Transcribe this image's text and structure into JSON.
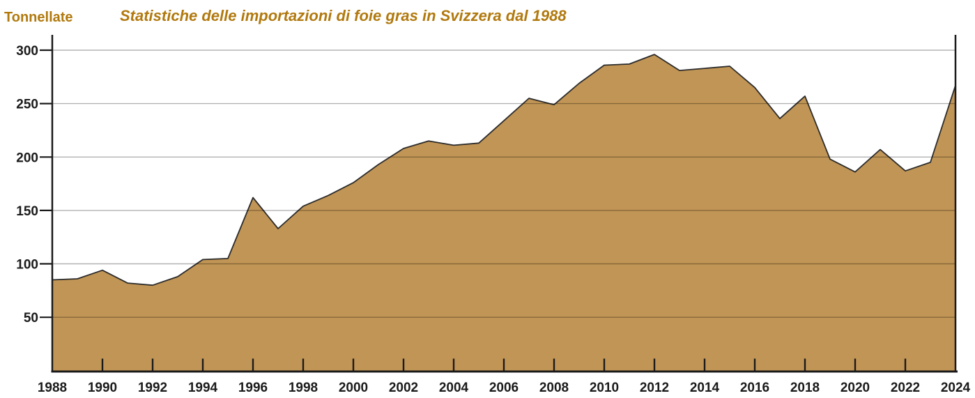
{
  "header": {
    "y_axis_unit_label": "Tonnellate",
    "title": "Statistiche delle importazioni di foie gras in Svizzera dal 1988"
  },
  "colors": {
    "accent_text": "#B1790E",
    "area_fill": "#C19555",
    "area_outline": "#2B2B2B",
    "axis": "#1A1A1A",
    "gridline": "rgba(0,0,0,0.30)"
  },
  "chart_data": {
    "type": "area",
    "title": "Statistiche delle importazioni di foie gras in Svizzera dal 1988",
    "ylabel": "Tonnellate",
    "xlabel": "",
    "x": [
      1988,
      1989,
      1990,
      1991,
      1992,
      1993,
      1994,
      1995,
      1996,
      1997,
      1998,
      1999,
      2000,
      2001,
      2002,
      2003,
      2004,
      2005,
      2006,
      2007,
      2008,
      2009,
      2010,
      2011,
      2012,
      2013,
      2014,
      2015,
      2016,
      2017,
      2018,
      2019,
      2020,
      2021,
      2022,
      2023,
      2024
    ],
    "values": [
      85,
      86,
      94,
      82,
      80,
      88,
      104,
      105,
      162,
      133,
      154,
      164,
      176,
      193,
      208,
      215,
      211,
      213,
      234,
      255,
      249,
      269,
      286,
      287,
      296,
      281,
      283,
      285,
      265,
      236,
      257,
      198,
      186,
      207,
      187,
      195,
      267
    ],
    "ylim": [
      0,
      300
    ],
    "y_ticks": [
      50,
      100,
      150,
      200,
      250,
      300
    ],
    "x_tick_years": [
      1988,
      1990,
      1992,
      1994,
      1996,
      1998,
      2000,
      2002,
      2004,
      2006,
      2008,
      2010,
      2012,
      2014,
      2016,
      2018,
      2020,
      2022,
      2024
    ],
    "grid": true,
    "legend_position": "none"
  }
}
